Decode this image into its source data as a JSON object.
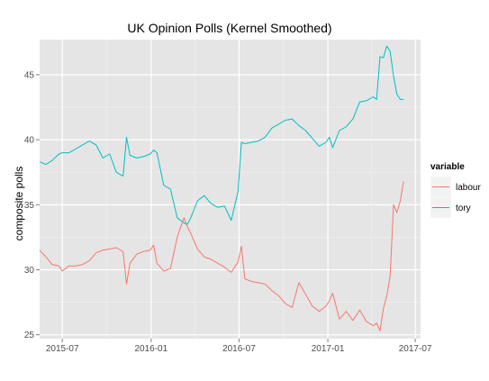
{
  "chart_data": {
    "type": "line",
    "title": "UK Opinion Polls (Kernel Smoothed)",
    "xlabel": "",
    "ylabel": "composite polls",
    "xlim": [
      "2015-05-15",
      "2017-07-12"
    ],
    "ylim": [
      24.7,
      47.7
    ],
    "x_ticks": [
      {
        "date": "2015-07-01",
        "label": "2015-07"
      },
      {
        "date": "2016-01-01",
        "label": "2016-01"
      },
      {
        "date": "2016-07-01",
        "label": "2016-07"
      },
      {
        "date": "2017-01-01",
        "label": "2017-01"
      },
      {
        "date": "2017-07-01",
        "label": "2017-07"
      }
    ],
    "y_ticks": [
      25,
      30,
      35,
      40,
      45
    ],
    "grid": true,
    "background": "#e5e5e5",
    "grid_color": "#ffffff",
    "legend": {
      "title": "variable",
      "position": "right"
    },
    "series": [
      {
        "name": "labour",
        "color": "#f8766d",
        "x": [
          "2015-05-15",
          "2015-05-28",
          "2015-06-10",
          "2015-06-24",
          "2015-07-01",
          "2015-07-15",
          "2015-07-29",
          "2015-08-12",
          "2015-08-26",
          "2015-09-09",
          "2015-09-23",
          "2015-10-07",
          "2015-10-21",
          "2015-11-04",
          "2015-11-11",
          "2015-11-18",
          "2015-12-02",
          "2015-12-16",
          "2015-12-30",
          "2016-01-06",
          "2016-01-13",
          "2016-01-27",
          "2016-02-10",
          "2016-02-24",
          "2016-03-09",
          "2016-03-16",
          "2016-03-23",
          "2016-04-06",
          "2016-04-20",
          "2016-05-04",
          "2016-05-18",
          "2016-06-01",
          "2016-06-15",
          "2016-06-29",
          "2016-07-06",
          "2016-07-13",
          "2016-07-27",
          "2016-08-10",
          "2016-08-24",
          "2016-09-07",
          "2016-09-21",
          "2016-10-05",
          "2016-10-19",
          "2016-11-02",
          "2016-11-16",
          "2016-11-30",
          "2016-12-14",
          "2016-12-28",
          "2017-01-04",
          "2017-01-11",
          "2017-01-25",
          "2017-02-08",
          "2017-02-22",
          "2017-03-08",
          "2017-03-22",
          "2017-04-05",
          "2017-04-12",
          "2017-04-19",
          "2017-04-26",
          "2017-05-03",
          "2017-05-10",
          "2017-05-17",
          "2017-05-24",
          "2017-05-31",
          "2017-06-07"
        ],
        "values": [
          31.5,
          31.0,
          30.4,
          30.3,
          29.9,
          30.3,
          30.3,
          30.4,
          30.7,
          31.3,
          31.5,
          31.6,
          31.7,
          31.4,
          28.9,
          30.5,
          31.2,
          31.4,
          31.5,
          31.9,
          30.5,
          29.9,
          30.1,
          32.5,
          34.0,
          33.3,
          32.8,
          31.6,
          31.0,
          30.8,
          30.5,
          30.2,
          29.8,
          30.6,
          31.8,
          29.3,
          29.1,
          29.0,
          28.9,
          28.4,
          28.0,
          27.4,
          27.1,
          29.0,
          28.1,
          27.2,
          26.8,
          27.2,
          27.6,
          28.2,
          26.2,
          26.8,
          26.1,
          26.9,
          26.0,
          25.7,
          25.9,
          25.3,
          27.0,
          28.0,
          29.5,
          35.0,
          34.4,
          35.3,
          36.8
        ]
      },
      {
        "name": "tory",
        "color": "#00bfc4",
        "x": [
          "2015-05-15",
          "2015-05-28",
          "2015-06-10",
          "2015-06-24",
          "2015-07-01",
          "2015-07-15",
          "2015-07-29",
          "2015-08-12",
          "2015-08-26",
          "2015-09-09",
          "2015-09-23",
          "2015-10-07",
          "2015-10-21",
          "2015-11-04",
          "2015-11-11",
          "2015-11-18",
          "2015-12-02",
          "2015-12-16",
          "2015-12-30",
          "2016-01-06",
          "2016-01-13",
          "2016-01-27",
          "2016-02-10",
          "2016-02-24",
          "2016-03-09",
          "2016-03-16",
          "2016-03-23",
          "2016-04-06",
          "2016-04-20",
          "2016-05-04",
          "2016-05-18",
          "2016-06-01",
          "2016-06-15",
          "2016-06-29",
          "2016-07-06",
          "2016-07-13",
          "2016-07-27",
          "2016-08-10",
          "2016-08-24",
          "2016-09-07",
          "2016-09-21",
          "2016-10-05",
          "2016-10-19",
          "2016-11-02",
          "2016-11-16",
          "2016-11-30",
          "2016-12-14",
          "2016-12-28",
          "2017-01-04",
          "2017-01-11",
          "2017-01-25",
          "2017-02-08",
          "2017-02-22",
          "2017-03-08",
          "2017-03-22",
          "2017-04-05",
          "2017-04-12",
          "2017-04-19",
          "2017-04-26",
          "2017-05-03",
          "2017-05-10",
          "2017-05-17",
          "2017-05-24",
          "2017-05-31",
          "2017-06-07"
        ],
        "values": [
          38.3,
          38.1,
          38.4,
          38.9,
          39.0,
          39.0,
          39.3,
          39.6,
          39.9,
          39.6,
          38.6,
          38.9,
          37.5,
          37.2,
          40.2,
          38.8,
          38.6,
          38.7,
          38.9,
          39.2,
          39.0,
          36.5,
          36.2,
          34.0,
          33.6,
          33.5,
          34.0,
          35.3,
          35.7,
          35.1,
          34.8,
          34.9,
          33.8,
          36.0,
          39.8,
          39.7,
          39.8,
          39.9,
          40.2,
          40.9,
          41.2,
          41.5,
          41.6,
          41.1,
          40.7,
          40.1,
          39.5,
          39.8,
          40.2,
          39.4,
          40.7,
          41.0,
          41.6,
          42.9,
          43.0,
          43.3,
          43.1,
          46.4,
          46.3,
          47.2,
          46.8,
          44.9,
          43.5,
          43.1,
          43.1
        ]
      }
    ]
  }
}
